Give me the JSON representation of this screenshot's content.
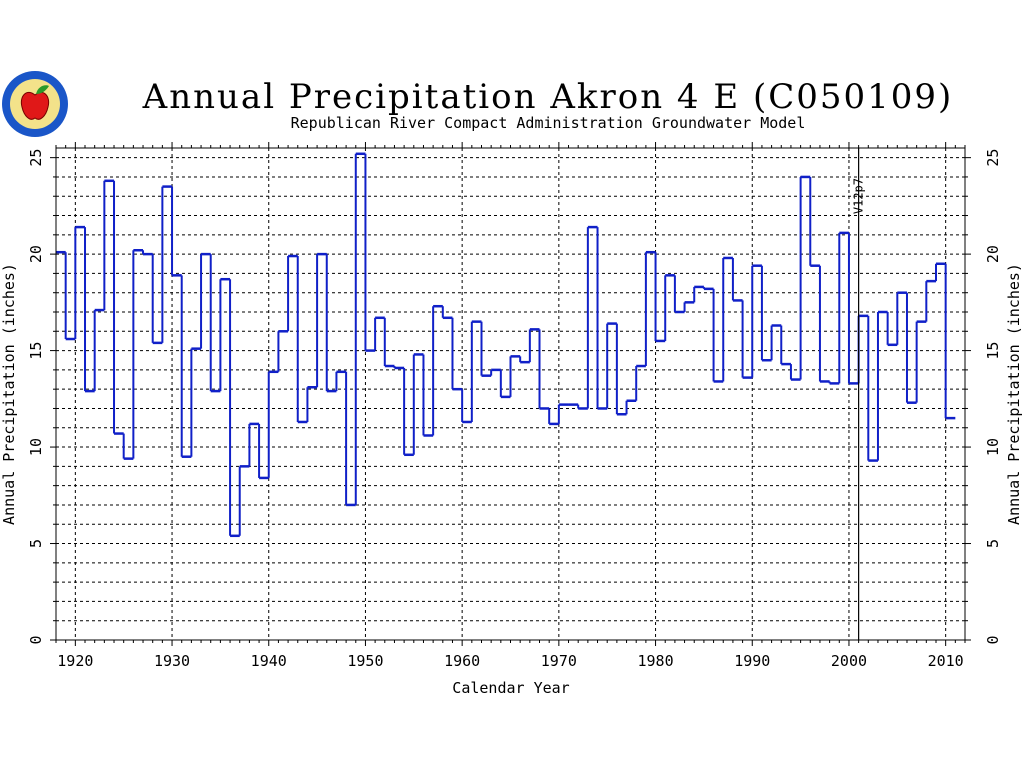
{
  "logo_color": "#1a56c8",
  "chart_data": {
    "type": "line",
    "step": true,
    "title": "Annual Precipitation Akron 4 E (C050109)",
    "subtitle": "Republican River Compact Administration Groundwater Model",
    "xlabel": "Calendar Year",
    "ylabel_left": "Annual Precipitation (inches)",
    "ylabel_right": "Annual Precipitation (inches)",
    "xlim": [
      1918,
      2012
    ],
    "ylim": [
      0,
      25.5
    ],
    "x_ticks": [
      1920,
      1930,
      1940,
      1950,
      1960,
      1970,
      1980,
      1990,
      2000,
      2010
    ],
    "x_tick_labels": [
      "1920",
      "1930",
      "1940",
      "1950",
      "1960",
      "1970",
      "1980",
      "1990",
      "2000",
      "2010"
    ],
    "y_ticks": [
      0,
      5,
      10,
      15,
      20,
      25
    ],
    "y_tick_labels": [
      "0",
      "5",
      "10",
      "15",
      "20",
      "25"
    ],
    "grid": true,
    "marker": {
      "x": 2001,
      "label": "V12p7"
    },
    "line_color": "#1020c8",
    "series": [
      {
        "x": [
          1918,
          1919,
          1920,
          1921,
          1922,
          1923,
          1924,
          1925,
          1926,
          1927,
          1928,
          1929,
          1930,
          1931,
          1932,
          1933,
          1934,
          1935,
          1936,
          1937,
          1938,
          1939,
          1940,
          1941,
          1942,
          1943,
          1944,
          1945,
          1946,
          1947,
          1948,
          1949,
          1950,
          1951,
          1952,
          1953,
          1954,
          1955,
          1956,
          1957,
          1958,
          1959,
          1960,
          1961,
          1962,
          1963,
          1964,
          1965,
          1966,
          1967,
          1968,
          1969,
          1970,
          1971,
          1972,
          1973,
          1974,
          1975,
          1976,
          1977,
          1978,
          1979,
          1980,
          1981,
          1982,
          1983,
          1984,
          1985,
          1986,
          1987,
          1988,
          1989,
          1990,
          1991,
          1992,
          1993,
          1994,
          1995,
          1996,
          1997,
          1998,
          1999,
          2000,
          2001,
          2002,
          2003,
          2004,
          2005,
          2006,
          2007,
          2008,
          2009,
          2010
        ],
        "values": [
          20.1,
          15.6,
          21.4,
          12.9,
          17.1,
          23.8,
          10.7,
          9.4,
          20.2,
          20.0,
          15.4,
          23.5,
          18.9,
          9.5,
          15.1,
          20.0,
          12.9,
          18.7,
          5.4,
          9.0,
          11.2,
          8.4,
          13.9,
          16.0,
          19.9,
          11.3,
          13.1,
          20.0,
          12.9,
          13.9,
          7.0,
          25.2,
          15.0,
          16.7,
          14.2,
          14.1,
          9.6,
          14.8,
          10.6,
          17.3,
          16.7,
          13.0,
          11.3,
          16.5,
          13.7,
          14.0,
          12.6,
          14.7,
          14.4,
          16.1,
          12.0,
          11.2,
          12.2,
          12.2,
          12.0,
          21.4,
          12.0,
          16.4,
          11.7,
          12.4,
          14.2,
          20.1,
          15.5,
          18.9,
          17.0,
          17.5,
          18.3,
          18.2,
          13.4,
          19.8,
          17.6,
          13.6,
          19.4,
          14.5,
          16.3,
          14.3,
          13.5,
          24.0,
          19.4,
          13.4,
          13.3,
          21.1,
          13.3,
          16.8,
          9.3,
          17.0,
          15.3,
          18.0,
          12.3,
          16.5,
          18.6,
          19.5,
          11.5
        ]
      }
    ]
  }
}
